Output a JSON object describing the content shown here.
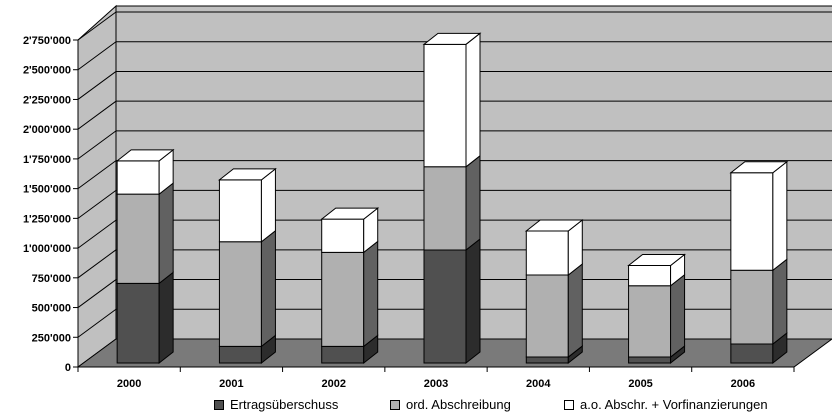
{
  "chart_data": {
    "type": "bar",
    "stacked": true,
    "three_d": true,
    "categories": [
      "2000",
      "2001",
      "2002",
      "2003",
      "2004",
      "2005",
      "2006"
    ],
    "series": [
      {
        "name": "Ertragsüberschuss",
        "color": "#505050",
        "values": [
          670000,
          140000,
          140000,
          950000,
          50000,
          50000,
          160000
        ]
      },
      {
        "name": "ord. Abschreibung",
        "color": "#b0b0b0",
        "values": [
          750000,
          880000,
          790000,
          700000,
          690000,
          600000,
          620000
        ]
      },
      {
        "name": "a.o. Abschr. + Vorfinanzierungen",
        "color": "#ffffff",
        "values": [
          280000,
          520000,
          280000,
          1030000,
          370000,
          170000,
          820000
        ]
      }
    ],
    "yticks": [
      "0",
      "250'000",
      "500'000",
      "750'000",
      "1'000'000",
      "1'250'000",
      "1'500'000",
      "1'750'000",
      "2'000'000",
      "2'250'000",
      "2'500'000",
      "2'750'000"
    ],
    "ylim": [
      0,
      2750000
    ],
    "ytick_step": 250000,
    "grid": true,
    "legend_position": "bottom",
    "wall_color": "#c0c0c0",
    "floor_color": "#7a7a7a"
  }
}
